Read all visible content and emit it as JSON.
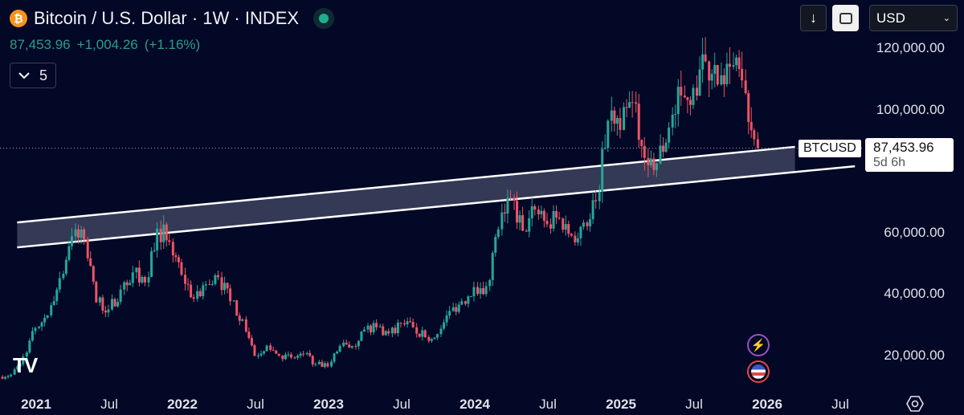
{
  "header": {
    "title": "Bitcoin / U.S. Dollar · 1W · INDEX",
    "last_price": "87,453.96",
    "change": "+1,004.26",
    "change_pct": "(+1.16%)",
    "indicators_count": "5",
    "currency": "USD",
    "icons": [
      "bitcoin-icon",
      "market-open-icon",
      "chevron-down-icon",
      "download-icon",
      "fit-screen-icon",
      "settings-icon"
    ]
  },
  "price_label": {
    "symbol": "BTCUSD",
    "price": "87,453.96",
    "countdown": "5d 6h"
  },
  "colors": {
    "background": "#020825",
    "up": "#26a69a",
    "down": "#ef5365",
    "channel_fill": "#3a3f5c",
    "channel_line": "#ffffff",
    "accent_green": "#2a9d8a"
  },
  "chart_data": {
    "type": "candlestick",
    "interval": "1W",
    "yticks": [
      20000,
      40000,
      60000,
      80000,
      100000,
      120000
    ],
    "ytick_labels": [
      "20,000.00",
      "40,000.00",
      "60,000.00",
      "",
      "100,000.00",
      "120,000.00"
    ],
    "xtick_labels": [
      {
        "label": "2021",
        "major": true,
        "date": 2021.0
      },
      {
        "label": "Jul",
        "major": false,
        "date": 2021.5
      },
      {
        "label": "2022",
        "major": true,
        "date": 2022.0
      },
      {
        "label": "Jul",
        "major": false,
        "date": 2022.5
      },
      {
        "label": "2023",
        "major": true,
        "date": 2023.0
      },
      {
        "label": "Jul",
        "major": false,
        "date": 2023.5
      },
      {
        "label": "2024",
        "major": true,
        "date": 2024.0
      },
      {
        "label": "Jul",
        "major": false,
        "date": 2024.5
      },
      {
        "label": "2025",
        "major": true,
        "date": 2025.0
      },
      {
        "label": "Jul",
        "major": false,
        "date": 2025.5
      },
      {
        "label": "2026",
        "major": true,
        "date": 2026.0
      },
      {
        "label": "Jul",
        "major": false,
        "date": 2026.5
      }
    ],
    "monthly_closes_start": "2020-10",
    "monthly_closes": [
      13800,
      19700,
      29000,
      33100,
      45200,
      58800,
      57700,
      37300,
      35000,
      41500,
      47100,
      43800,
      61300,
      57000,
      46300,
      38500,
      43200,
      45500,
      37700,
      31800,
      19900,
      23300,
      20000,
      19400,
      20500,
      17200,
      16500,
      23100,
      23100,
      28500,
      29200,
      27200,
      30500,
      29200,
      26000,
      27000,
      34500,
      37700,
      42300,
      42600,
      61100,
      71300,
      60600,
      67500,
      62700,
      64600,
      59000,
      63300,
      70200,
      96400,
      93400,
      102400,
      84300,
      82500,
      94200,
      104600,
      107100,
      115700,
      108200,
      114000,
      109500,
      90400,
      87453.96
    ],
    "last_price": 87453.96,
    "channel": {
      "upper": [
        {
          "date": 2020.87,
          "price": 63300
        },
        {
          "date": 2026.19,
          "price": 87900
        }
      ],
      "lower": [
        {
          "date": 2020.87,
          "price": 55200
        },
        {
          "date": 2026.6,
          "price": 81600
        }
      ]
    }
  }
}
